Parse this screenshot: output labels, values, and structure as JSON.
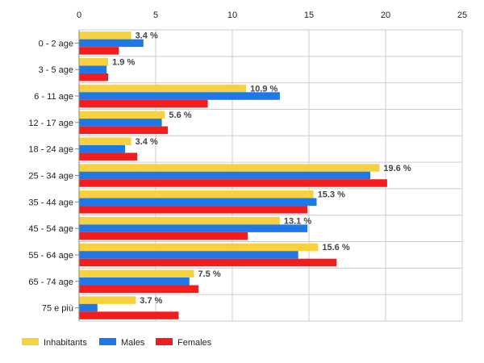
{
  "chart_data": {
    "type": "bar",
    "orientation": "horizontal",
    "categories": [
      "0 - 2 age",
      "3 - 5 age",
      "6 - 11 age",
      "12 - 17 age",
      "18 - 24 age",
      "25 - 34 age",
      "35 - 44 age",
      "45 - 54 age",
      "55 - 64 age",
      "65 - 74 age",
      "75 e più"
    ],
    "series": [
      {
        "name": "Inhabitants",
        "color": "#f7d23e",
        "values": [
          3.4,
          1.9,
          10.9,
          5.6,
          3.4,
          19.6,
          15.3,
          13.1,
          15.6,
          7.5,
          3.7
        ]
      },
      {
        "name": "Males",
        "color": "#1f78e8",
        "values": [
          4.2,
          1.8,
          13.1,
          5.4,
          3.0,
          19.0,
          15.5,
          14.9,
          14.3,
          7.2,
          1.2
        ]
      },
      {
        "name": "Females",
        "color": "#f41d1d",
        "values": [
          2.6,
          1.9,
          8.4,
          5.8,
          3.8,
          20.1,
          14.9,
          11.0,
          16.8,
          7.8,
          6.5
        ]
      }
    ],
    "data_labels": [
      "3.4 %",
      "1.9 %",
      "10.9 %",
      "5.6 %",
      "3.4 %",
      "19.6 %",
      "15.3 %",
      "13.1 %",
      "15.6 %",
      "7.5 %",
      "3.7 %"
    ],
    "x_ticks": [
      "0",
      "5",
      "10",
      "15",
      "20",
      "25"
    ],
    "xlim": [
      0,
      25
    ],
    "grid": true,
    "legend_position": "bottom-left"
  }
}
